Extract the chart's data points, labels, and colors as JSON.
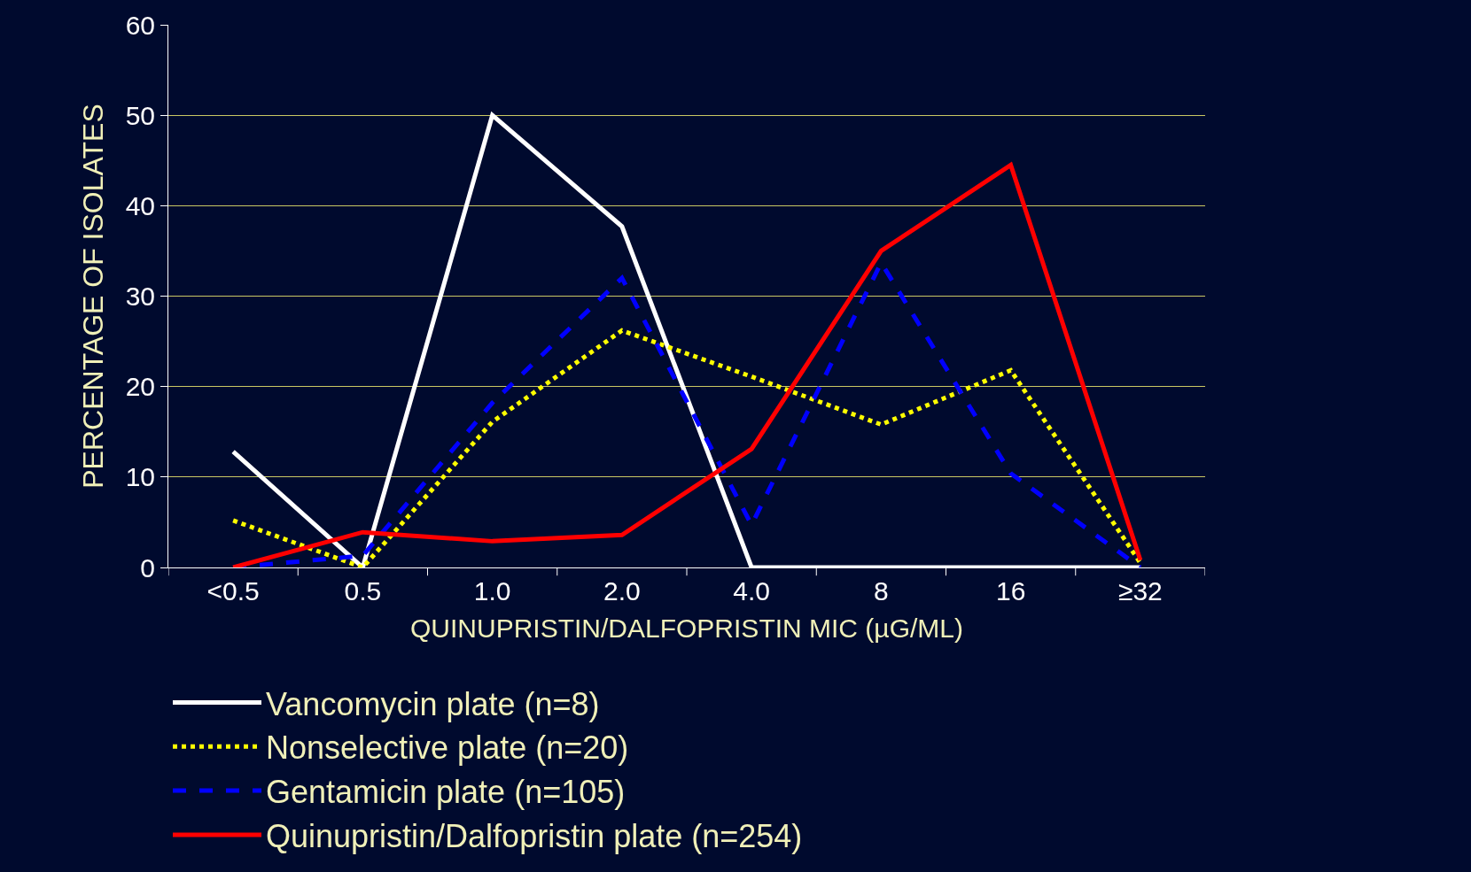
{
  "chart_data": {
    "type": "line",
    "xlabel": "QUINUPRISTIN/DALFOPRISTIN MIC (µG/ML)",
    "ylabel": "PERCENTAGE OF ISOLATES",
    "categories": [
      "<0.5",
      "0.5",
      "1.0",
      "2.0",
      "4.0",
      "8",
      "16",
      "≥32"
    ],
    "series": [
      {
        "name": "Vancomycin plate (n=8)",
        "color": "#ffffff",
        "line_style": "solid",
        "values": [
          12.8,
          0,
          50,
          37.7,
          0,
          0,
          0,
          0
        ]
      },
      {
        "name": "Nonselective plate (n=20)",
        "color": "#ffff00",
        "line_style": "dotted",
        "values": [
          5.2,
          0,
          16.1,
          26.2,
          21.1,
          15.8,
          21.8,
          0.5
        ]
      },
      {
        "name": "Gentamicin plate (n=105)",
        "color": "#0000ff",
        "line_style": "dashed",
        "values": [
          0,
          1.3,
          18.2,
          32,
          4.7,
          33.7,
          10.4,
          0
        ]
      },
      {
        "name": "Quinupristin/Dalfopristin plate (n=254)",
        "color": "#ff0000",
        "line_style": "solid",
        "values": [
          0,
          3.9,
          2.9,
          3.6,
          13.1,
          35,
          44.5,
          0.8
        ]
      }
    ],
    "ylim": [
      0,
      60
    ],
    "yticks": [
      0,
      10,
      20,
      30,
      40,
      50,
      60
    ],
    "grid": "y",
    "legend": "bottom",
    "marker": "none"
  }
}
